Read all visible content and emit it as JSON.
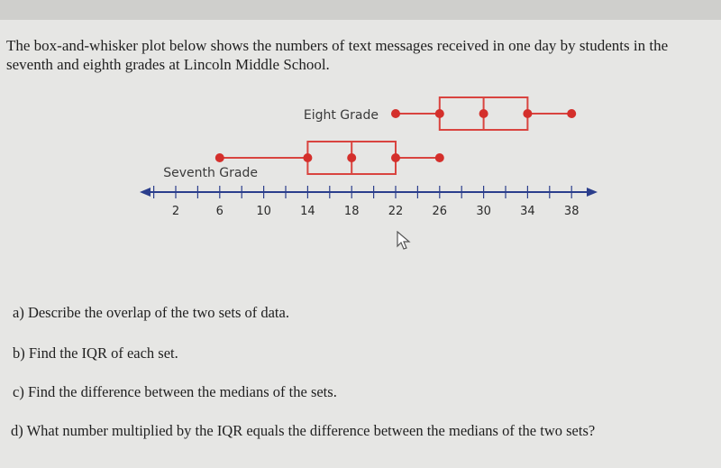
{
  "intro_text": "The box-and-whisker plot below shows the numbers of text messages received in one day by students in the seventh and eighth grades at Lincoln Middle School.",
  "questions": [
    "a) Describe the overlap of the two sets of data.",
    "b) Find the IQR of each set.",
    "c) Find the difference between the medians of the sets.",
    "d) What number multiplied by the IQR equals the difference between the medians of the two sets?"
  ],
  "chart_data": {
    "type": "box",
    "x_ticks": [
      2,
      6,
      10,
      14,
      18,
      22,
      26,
      30,
      34,
      38
    ],
    "x_range": [
      -1,
      40
    ],
    "series": [
      {
        "name": "Eight Grade",
        "min": 26,
        "q1": 26,
        "median": 30,
        "q3": 34,
        "max": 38,
        "low_point": 22
      },
      {
        "name": "Seventh Grade",
        "min": 6,
        "q1": 14,
        "median": 18,
        "q3": 22,
        "max": 26
      }
    ],
    "colors": {
      "box": "#d9443f",
      "point": "#d42f2b",
      "axis": "#2b3e8c"
    }
  }
}
